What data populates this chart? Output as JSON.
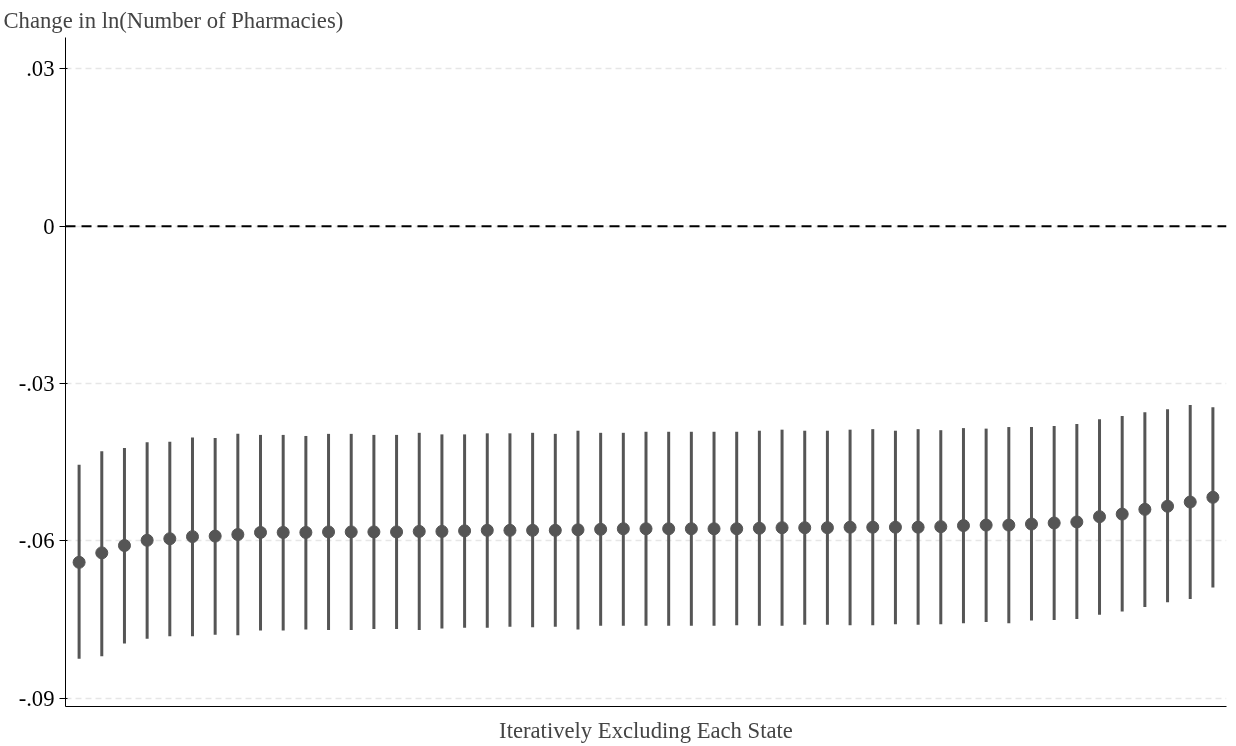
{
  "chart_data": {
    "type": "scatter",
    "ylabel": "Change in ln(Number of Pharmacies)",
    "xlabel": "Iteratively Excluding Each State",
    "categories": [
      null,
      null,
      null,
      null,
      null,
      null,
      null,
      null,
      null,
      null,
      null,
      null,
      null,
      null,
      null,
      null,
      null,
      null,
      null,
      null,
      null,
      null,
      null,
      null,
      null,
      null,
      null,
      null,
      null,
      null,
      null,
      null,
      null,
      null,
      null,
      null,
      null,
      null,
      null,
      null,
      null,
      null,
      null,
      null,
      null,
      null,
      null,
      null,
      null,
      null,
      null
    ],
    "series": [
      {
        "color": "#555555",
        "values": [
          -0.0641,
          -0.0623,
          -0.0609,
          -0.0599,
          -0.0596,
          -0.0592,
          -0.0591,
          -0.0588,
          -0.0584,
          -0.0584,
          -0.0584,
          -0.0583,
          -0.0583,
          -0.0583,
          -0.0583,
          -0.0582,
          -0.0582,
          -0.0581,
          -0.058,
          -0.058,
          -0.058,
          -0.058,
          -0.0579,
          -0.0578,
          -0.0577,
          -0.0577,
          -0.0577,
          -0.0577,
          -0.0577,
          -0.0577,
          -0.0576,
          -0.0575,
          -0.0575,
          -0.0575,
          -0.0574,
          -0.0574,
          -0.0574,
          -0.0574,
          -0.0573,
          -0.0571,
          -0.057,
          -0.057,
          -0.0568,
          -0.0566,
          -0.0564,
          -0.0554,
          -0.0549,
          -0.054,
          -0.0534,
          -0.0526,
          -0.0517
        ],
        "errors": [
          [
            -0.0825,
            -0.0455
          ],
          [
            -0.082,
            -0.0429
          ],
          [
            -0.0796,
            -0.0423
          ],
          [
            -0.0787,
            -0.0412
          ],
          [
            -0.0782,
            -0.0411
          ],
          [
            -0.0782,
            -0.0403
          ],
          [
            -0.0779,
            -0.0404
          ],
          [
            -0.078,
            -0.0396
          ],
          [
            -0.0771,
            -0.0398
          ],
          [
            -0.0771,
            -0.0398
          ],
          [
            -0.0769,
            -0.04
          ],
          [
            -0.077,
            -0.0396
          ],
          [
            -0.077,
            -0.0396
          ],
          [
            -0.0768,
            -0.0398
          ],
          [
            -0.0768,
            -0.0398
          ],
          [
            -0.077,
            -0.0394
          ],
          [
            -0.0767,
            -0.0397
          ],
          [
            -0.0766,
            -0.0397
          ],
          [
            -0.0766,
            -0.0395
          ],
          [
            -0.0764,
            -0.0395
          ],
          [
            -0.0765,
            -0.0394
          ],
          [
            -0.0764,
            -0.0396
          ],
          [
            -0.0769,
            -0.039
          ],
          [
            -0.0762,
            -0.0394
          ],
          [
            -0.0762,
            -0.0394
          ],
          [
            -0.0762,
            -0.0392
          ],
          [
            -0.0762,
            -0.0392
          ],
          [
            -0.0762,
            -0.0392
          ],
          [
            -0.0762,
            -0.0392
          ],
          [
            -0.0761,
            -0.0392
          ],
          [
            -0.0762,
            -0.039
          ],
          [
            -0.0762,
            -0.0388
          ],
          [
            -0.076,
            -0.039
          ],
          [
            -0.076,
            -0.039
          ],
          [
            -0.0761,
            -0.0388
          ],
          [
            -0.0761,
            -0.0387
          ],
          [
            -0.0759,
            -0.039
          ],
          [
            -0.076,
            -0.0387
          ],
          [
            -0.0759,
            -0.0389
          ],
          [
            -0.0757,
            -0.0385
          ],
          [
            -0.0755,
            -0.0386
          ],
          [
            -0.0757,
            -0.0383
          ],
          [
            -0.0752,
            -0.0383
          ],
          [
            -0.0751,
            -0.0381
          ],
          [
            -0.0749,
            -0.0377
          ],
          [
            -0.0741,
            -0.0368
          ],
          [
            -0.0735,
            -0.0362
          ],
          [
            -0.0726,
            -0.0355
          ],
          [
            -0.0717,
            -0.0349
          ],
          [
            -0.0711,
            -0.0341
          ],
          [
            -0.0689,
            -0.0345
          ]
        ]
      }
    ],
    "ylim": [
      -0.0916,
      0.036
    ],
    "yticks": [
      {
        "value": 0.03,
        "label": ".03"
      },
      0,
      {
        "value": -0.03,
        "label": "-.03"
      },
      {
        "value": -0.06,
        "label": "-.06"
      },
      {
        "value": -0.09,
        "label": "-.09"
      }
    ],
    "ref_lines": [
      {
        "axis": "y",
        "value": 0,
        "color": "#000000",
        "line_style": "dashed"
      }
    ],
    "grid": "y",
    "marker": "circle",
    "tick_labels": "y"
  }
}
